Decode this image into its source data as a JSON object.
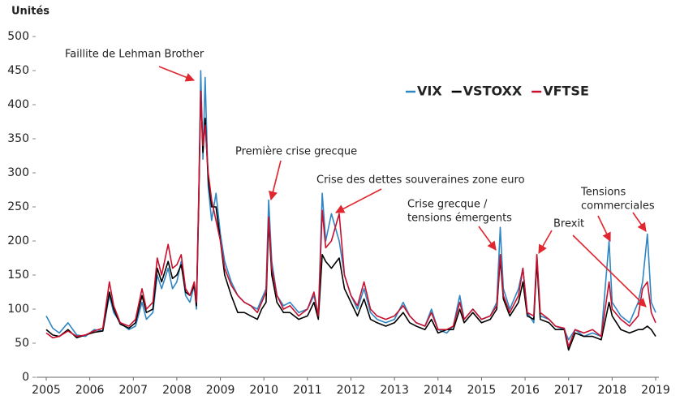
{
  "chart_data": {
    "type": "line",
    "ylabel": "Unités",
    "x": [
      2005.0,
      2005.15,
      2005.3,
      2005.5,
      2005.7,
      2005.9,
      2006.1,
      2006.3,
      2006.45,
      2006.55,
      2006.7,
      2006.9,
      2007.05,
      2007.2,
      2007.3,
      2007.45,
      2007.55,
      2007.65,
      2007.8,
      2007.9,
      2008.0,
      2008.1,
      2008.2,
      2008.3,
      2008.4,
      2008.45,
      2008.5,
      2008.55,
      2008.6,
      2008.65,
      2008.72,
      2008.8,
      2008.9,
      2009.0,
      2009.1,
      2009.25,
      2009.4,
      2009.55,
      2009.7,
      2009.85,
      2009.95,
      2010.05,
      2010.11,
      2010.18,
      2010.3,
      2010.45,
      2010.6,
      2010.8,
      2011.0,
      2011.15,
      2011.25,
      2011.34,
      2011.42,
      2011.55,
      2011.73,
      2011.85,
      2012.0,
      2012.15,
      2012.3,
      2012.45,
      2012.6,
      2012.8,
      2013.0,
      2013.2,
      2013.35,
      2013.5,
      2013.7,
      2013.85,
      2014.0,
      2014.2,
      2014.35,
      2014.5,
      2014.6,
      2014.8,
      2015.0,
      2015.2,
      2015.35,
      2015.43,
      2015.5,
      2015.65,
      2015.85,
      2015.95,
      2016.05,
      2016.2,
      2016.27,
      2016.35,
      2016.55,
      2016.7,
      2016.9,
      2017.0,
      2017.15,
      2017.35,
      2017.55,
      2017.75,
      2017.93,
      2018.0,
      2018.2,
      2018.4,
      2018.6,
      2018.7,
      2018.81,
      2018.9,
      2019.0
    ],
    "series": [
      {
        "name": "VIX",
        "color": "#2f86c4",
        "values": [
          90,
          72,
          65,
          80,
          62,
          60,
          70,
          68,
          120,
          95,
          80,
          70,
          75,
          110,
          85,
          95,
          150,
          130,
          160,
          130,
          140,
          170,
          120,
          110,
          135,
          100,
          250,
          450,
          320,
          440,
          280,
          230,
          270,
          210,
          170,
          140,
          120,
          110,
          105,
          100,
          115,
          130,
          260,
          170,
          120,
          105,
          110,
          95,
          100,
          120,
          90,
          270,
          200,
          240,
          200,
          150,
          120,
          100,
          130,
          95,
          85,
          80,
          85,
          110,
          90,
          80,
          75,
          100,
          70,
          65,
          75,
          120,
          85,
          100,
          85,
          90,
          110,
          220,
          130,
          100,
          130,
          160,
          95,
          80,
          180,
          90,
          85,
          75,
          70,
          55,
          70,
          60,
          65,
          60,
          200,
          110,
          90,
          80,
          110,
          140,
          210,
          110,
          95
        ]
      },
      {
        "name": "VSTOXX",
        "color": "#000000",
        "values": [
          70,
          62,
          60,
          70,
          58,
          62,
          66,
          68,
          125,
          100,
          78,
          72,
          80,
          120,
          95,
          100,
          160,
          140,
          170,
          145,
          150,
          165,
          125,
          120,
          135,
          105,
          250,
          420,
          330,
          380,
          290,
          250,
          250,
          200,
          150,
          120,
          95,
          95,
          90,
          85,
          100,
          110,
          230,
          150,
          110,
          95,
          95,
          85,
          90,
          110,
          85,
          180,
          170,
          160,
          175,
          130,
          110,
          90,
          115,
          85,
          80,
          75,
          80,
          95,
          80,
          75,
          70,
          85,
          65,
          70,
          70,
          100,
          80,
          95,
          80,
          85,
          100,
          175,
          115,
          90,
          110,
          140,
          90,
          85,
          170,
          85,
          80,
          70,
          70,
          40,
          65,
          60,
          60,
          55,
          110,
          90,
          70,
          65,
          70,
          70,
          75,
          70,
          60
        ]
      },
      {
        "name": "VFTSE",
        "color": "#c8102e",
        "values": [
          65,
          58,
          60,
          68,
          60,
          62,
          68,
          72,
          140,
          105,
          80,
          75,
          85,
          130,
          100,
          110,
          175,
          150,
          195,
          160,
          165,
          180,
          130,
          120,
          140,
          110,
          260,
          420,
          340,
          370,
          300,
          260,
          230,
          200,
          160,
          135,
          120,
          110,
          105,
          95,
          110,
          125,
          235,
          160,
          120,
          100,
          105,
          90,
          100,
          125,
          90,
          245,
          190,
          200,
          240,
          150,
          120,
          105,
          140,
          100,
          90,
          85,
          90,
          105,
          90,
          80,
          75,
          95,
          70,
          70,
          75,
          110,
          85,
          100,
          85,
          90,
          105,
          180,
          120,
          95,
          120,
          160,
          95,
          90,
          180,
          95,
          85,
          75,
          72,
          45,
          70,
          65,
          70,
          60,
          140,
          100,
          85,
          75,
          90,
          130,
          140,
          95,
          80
        ]
      }
    ],
    "xlim": [
      2005,
      2019
    ],
    "xticks": [
      2005,
      2006,
      2007,
      2008,
      2009,
      2010,
      2011,
      2012,
      2013,
      2014,
      2015,
      2016,
      2017,
      2018,
      2019
    ],
    "ylim": [
      0,
      500
    ],
    "yticks": [
      0,
      50,
      100,
      150,
      200,
      250,
      300,
      350,
      400,
      450,
      500
    ],
    "legend": "upper right",
    "annotations": [
      [
        "Faillite de Lehman Brother"
      ],
      [
        "Première crise grecque"
      ],
      [
        "Crise des dettes souveraines zone euro"
      ],
      [
        "Crise grecque /",
        "tensions émergents"
      ],
      [
        "Brexit"
      ],
      [
        "Tensions",
        "commerciales"
      ]
    ]
  }
}
